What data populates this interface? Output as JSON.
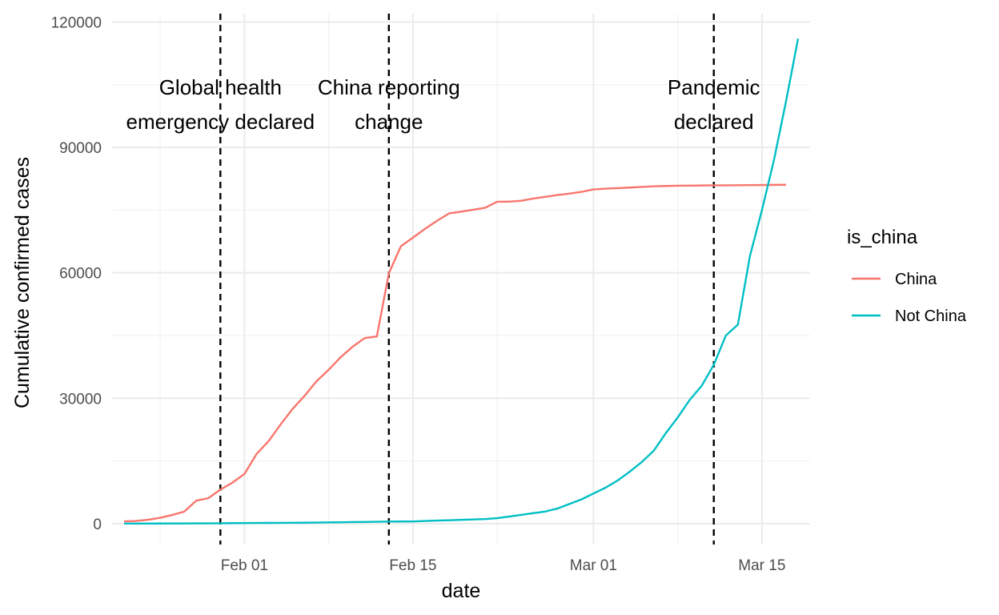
{
  "chart_data": {
    "type": "line",
    "xlabel": "date",
    "ylabel": "Cumulative confirmed cases",
    "xlim": [
      "2020-01-21",
      "2020-03-19"
    ],
    "ylim": [
      -5000,
      122000
    ],
    "y_ticks": [
      0,
      30000,
      60000,
      90000,
      120000
    ],
    "y_tick_labels": [
      "0",
      "30000",
      "60000",
      "90000",
      "120000"
    ],
    "x_ticks": [
      "2020-02-01",
      "2020-02-15",
      "2020-03-01",
      "2020-03-15"
    ],
    "x_tick_labels": [
      "Feb 01",
      "Feb 15",
      "Mar 01",
      "Mar 15"
    ],
    "x_minor_ticks": [
      "2020-01-25",
      "2020-02-08",
      "2020-02-22",
      "2020-03-08"
    ],
    "grid": true,
    "legend": {
      "title": "is_china",
      "position": "right",
      "entries": [
        {
          "label": "China",
          "color": "#F8766D"
        },
        {
          "label": "Not China",
          "color": "#00BFC4"
        }
      ]
    },
    "events": [
      {
        "date": "2020-01-30",
        "lines": [
          "Global health",
          "emergency declared"
        ]
      },
      {
        "date": "2020-02-13",
        "lines": [
          "China reporting",
          "change"
        ]
      },
      {
        "date": "2020-03-11",
        "lines": [
          "Pandemic",
          "declared"
        ]
      }
    ],
    "series": [
      {
        "name": "China",
        "color": "#F8766D",
        "points": [
          [
            "2020-01-22",
            548
          ],
          [
            "2020-01-23",
            643
          ],
          [
            "2020-01-24",
            920
          ],
          [
            "2020-01-25",
            1406
          ],
          [
            "2020-01-26",
            2075
          ],
          [
            "2020-01-27",
            2877
          ],
          [
            "2020-01-28",
            5509
          ],
          [
            "2020-01-29",
            6087
          ],
          [
            "2020-01-30",
            8141
          ],
          [
            "2020-01-31",
            9802
          ],
          [
            "2020-02-01",
            11891
          ],
          [
            "2020-02-02",
            16630
          ],
          [
            "2020-02-03",
            19716
          ],
          [
            "2020-02-04",
            23707
          ],
          [
            "2020-02-05",
            27440
          ],
          [
            "2020-02-06",
            30587
          ],
          [
            "2020-02-07",
            34110
          ],
          [
            "2020-02-08",
            36814
          ],
          [
            "2020-02-09",
            39829
          ],
          [
            "2020-02-10",
            42354
          ],
          [
            "2020-02-11",
            44386
          ],
          [
            "2020-02-12",
            44759
          ],
          [
            "2020-02-13",
            59895
          ],
          [
            "2020-02-14",
            66358
          ],
          [
            "2020-02-15",
            68413
          ],
          [
            "2020-02-16",
            70513
          ],
          [
            "2020-02-17",
            72434
          ],
          [
            "2020-02-18",
            74211
          ],
          [
            "2020-02-19",
            74619
          ],
          [
            "2020-02-20",
            75077
          ],
          [
            "2020-02-21",
            75550
          ],
          [
            "2020-02-22",
            77001
          ],
          [
            "2020-02-23",
            77022
          ],
          [
            "2020-02-24",
            77241
          ],
          [
            "2020-02-25",
            77754
          ],
          [
            "2020-02-26",
            78166
          ],
          [
            "2020-02-27",
            78600
          ],
          [
            "2020-02-28",
            78928
          ],
          [
            "2020-02-29",
            79356
          ],
          [
            "2020-03-01",
            79932
          ],
          [
            "2020-03-02",
            80136
          ],
          [
            "2020-03-03",
            80261
          ],
          [
            "2020-03-04",
            80386
          ],
          [
            "2020-03-05",
            80537
          ],
          [
            "2020-03-06",
            80690
          ],
          [
            "2020-03-07",
            80770
          ],
          [
            "2020-03-08",
            80823
          ],
          [
            "2020-03-09",
            80860
          ],
          [
            "2020-03-10",
            80887
          ],
          [
            "2020-03-11",
            80921
          ],
          [
            "2020-03-12",
            80932
          ],
          [
            "2020-03-13",
            80945
          ],
          [
            "2020-03-14",
            80977
          ],
          [
            "2020-03-15",
            81003
          ],
          [
            "2020-03-16",
            81033
          ],
          [
            "2020-03-17",
            81058
          ]
        ]
      },
      {
        "name": "Not China",
        "color": "#00BFC4",
        "points": [
          [
            "2020-01-22",
            7
          ],
          [
            "2020-01-23",
            11
          ],
          [
            "2020-01-24",
            21
          ],
          [
            "2020-01-25",
            28
          ],
          [
            "2020-01-26",
            43
          ],
          [
            "2020-01-27",
            50
          ],
          [
            "2020-01-28",
            61
          ],
          [
            "2020-01-29",
            71
          ],
          [
            "2020-01-30",
            95
          ],
          [
            "2020-01-31",
            124
          ],
          [
            "2020-02-01",
            143
          ],
          [
            "2020-02-02",
            153
          ],
          [
            "2020-02-03",
            172
          ],
          [
            "2020-02-04",
            184
          ],
          [
            "2020-02-05",
            203
          ],
          [
            "2020-02-06",
            217
          ],
          [
            "2020-02-07",
            260
          ],
          [
            "2020-02-08",
            300
          ],
          [
            "2020-02-09",
            334
          ],
          [
            "2020-02-10",
            385
          ],
          [
            "2020-02-11",
            393
          ],
          [
            "2020-02-12",
            442
          ],
          [
            "2020-02-13",
            500
          ],
          [
            "2020-02-14",
            510
          ],
          [
            "2020-02-15",
            525
          ],
          [
            "2020-02-16",
            636
          ],
          [
            "2020-02-17",
            730
          ],
          [
            "2020-02-18",
            810
          ],
          [
            "2020-02-19",
            900
          ],
          [
            "2020-02-20",
            1000
          ],
          [
            "2020-02-21",
            1100
          ],
          [
            "2020-02-22",
            1300
          ],
          [
            "2020-02-23",
            1700
          ],
          [
            "2020-02-24",
            2100
          ],
          [
            "2020-02-25",
            2500
          ],
          [
            "2020-02-26",
            2900
          ],
          [
            "2020-02-27",
            3600
          ],
          [
            "2020-02-28",
            4700
          ],
          [
            "2020-02-29",
            5800
          ],
          [
            "2020-03-01",
            7200
          ],
          [
            "2020-03-02",
            8600
          ],
          [
            "2020-03-03",
            10300
          ],
          [
            "2020-03-04",
            12400
          ],
          [
            "2020-03-05",
            14700
          ],
          [
            "2020-03-06",
            17400
          ],
          [
            "2020-03-07",
            21600
          ],
          [
            "2020-03-08",
            25400
          ],
          [
            "2020-03-09",
            29600
          ],
          [
            "2020-03-10",
            33000
          ],
          [
            "2020-03-11",
            38000
          ],
          [
            "2020-03-12",
            45000
          ],
          [
            "2020-03-13",
            47600
          ],
          [
            "2020-03-14",
            64000
          ],
          [
            "2020-03-15",
            75000
          ],
          [
            "2020-03-16",
            87000
          ],
          [
            "2020-03-17",
            101000
          ],
          [
            "2020-03-18",
            116000
          ]
        ]
      }
    ]
  }
}
